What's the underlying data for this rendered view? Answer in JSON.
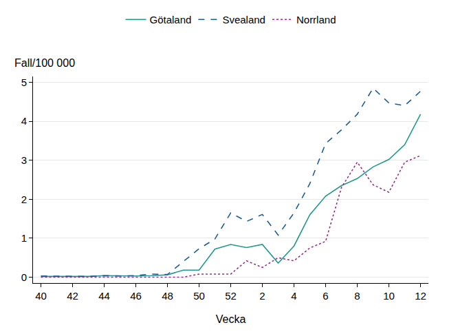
{
  "chart_data": {
    "type": "line",
    "x_label": "Vecka",
    "y_label": "Fall/100 000",
    "categories": [
      "40",
      null,
      "42",
      null,
      "44",
      null,
      "46",
      null,
      "48",
      null,
      "50",
      null,
      "52",
      null,
      "2",
      null,
      "4",
      null,
      "6",
      null,
      "8",
      null,
      "10",
      null,
      "12"
    ],
    "series": [
      {
        "name": "Götaland",
        "color": "#1f9a8c",
        "line_style": "solid",
        "values": [
          0.02,
          0.02,
          0.03,
          0.02,
          0.04,
          0.03,
          0.03,
          0.04,
          0.06,
          0.18,
          0.18,
          0.72,
          0.84,
          0.76,
          0.84,
          0.36,
          0.8,
          1.6,
          2.08,
          2.35,
          2.53,
          2.83,
          3.02,
          3.4,
          4.18
        ]
      },
      {
        "name": "Svealand",
        "color": "#1b5e96",
        "line_style": "dash",
        "values": [
          0.03,
          0.03,
          0.03,
          0.02,
          0.04,
          0.03,
          0.04,
          0.08,
          0.07,
          0.4,
          0.73,
          0.98,
          1.65,
          1.43,
          1.61,
          1.08,
          1.65,
          2.4,
          3.43,
          3.78,
          4.18,
          4.85,
          4.47,
          4.4,
          4.77
        ]
      },
      {
        "name": "Norrland",
        "color": "#9b2d8e",
        "line_style": "dot",
        "values": [
          0,
          0,
          0,
          0,
          0,
          0,
          0,
          0,
          0,
          0,
          0.08,
          0.08,
          0.08,
          0.42,
          0.25,
          0.5,
          0.42,
          0.75,
          0.92,
          2.3,
          2.95,
          2.37,
          2.18,
          2.95,
          3.12
        ]
      }
    ],
    "ylim": [
      -0.15,
      5.15
    ],
    "yticks": [
      0,
      1,
      2,
      3,
      4,
      5
    ],
    "grid": true,
    "legend": "top"
  }
}
